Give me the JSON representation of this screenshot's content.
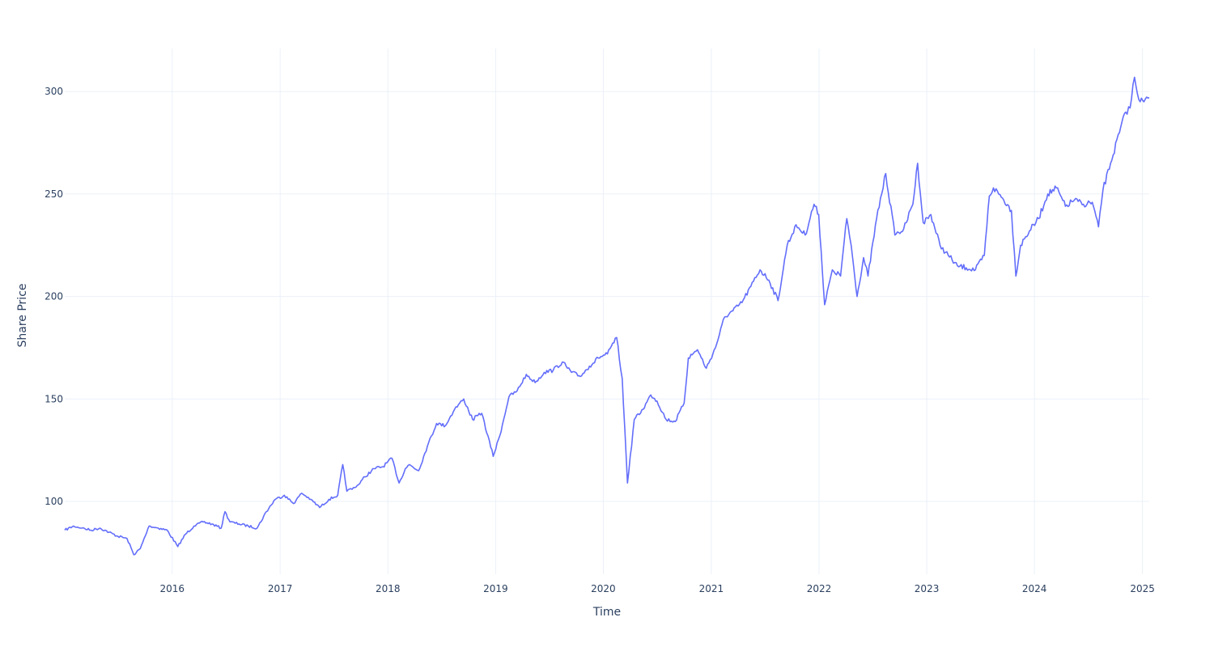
{
  "chart_data": {
    "type": "line",
    "title": "",
    "xlabel": "Time",
    "ylabel": "Share Price",
    "xlim": [
      "2015-01-02",
      "2025-01-24"
    ],
    "ylim": [
      64.5,
      321
    ],
    "x_ticks": [
      "2016",
      "2017",
      "2018",
      "2019",
      "2020",
      "2021",
      "2022",
      "2023",
      "2024",
      "2025"
    ],
    "y_ticks": [
      100,
      150,
      200,
      250,
      300
    ],
    "grid": true,
    "legend": "none",
    "colors": {
      "line": "#636efa",
      "grid": "#ebf0f8",
      "text": "#2a3f5f",
      "background": "#ffffff"
    },
    "series": [
      {
        "x": [
          "2015-01-02",
          "2015-02-01",
          "2015-03-01",
          "2015-04-01",
          "2015-05-01",
          "2015-06-01",
          "2015-07-01",
          "2015-08-01",
          "2015-08-24",
          "2015-09-15",
          "2015-10-15",
          "2015-11-15",
          "2015-12-15",
          "2016-01-20",
          "2016-02-15",
          "2016-03-15",
          "2016-04-15",
          "2016-05-15",
          "2016-06-15",
          "2016-06-28",
          "2016-07-15",
          "2016-08-15",
          "2016-09-15",
          "2016-10-15",
          "2016-11-15",
          "2016-12-15",
          "2017-01-15",
          "2017-02-15",
          "2017-03-15",
          "2017-04-15",
          "2017-05-15",
          "2017-06-15",
          "2017-07-15",
          "2017-08-01",
          "2017-08-15",
          "2017-09-15",
          "2017-10-15",
          "2017-11-15",
          "2017-12-15",
          "2018-01-15",
          "2018-02-08",
          "2018-03-01",
          "2018-03-15",
          "2018-04-15",
          "2018-05-15",
          "2018-06-15",
          "2018-07-15",
          "2018-08-15",
          "2018-09-15",
          "2018-10-15",
          "2018-11-15",
          "2018-12-24",
          "2019-01-15",
          "2019-02-15",
          "2019-03-15",
          "2019-04-15",
          "2019-05-15",
          "2019-06-15",
          "2019-07-15",
          "2019-08-15",
          "2019-09-15",
          "2019-10-15",
          "2019-11-15",
          "2019-12-15",
          "2020-01-15",
          "2020-02-15",
          "2020-03-05",
          "2020-03-23",
          "2020-04-15",
          "2020-05-15",
          "2020-06-10",
          "2020-07-01",
          "2020-08-01",
          "2020-09-01",
          "2020-10-01",
          "2020-10-15",
          "2020-11-15",
          "2020-12-15",
          "2021-01-15",
          "2021-02-15",
          "2021-03-15",
          "2021-04-15",
          "2021-05-15",
          "2021-06-15",
          "2021-07-15",
          "2021-08-15",
          "2021-09-15",
          "2021-10-15",
          "2021-11-15",
          "2021-12-15",
          "2021-12-31",
          "2022-01-20",
          "2022-02-15",
          "2022-03-15",
          "2022-04-05",
          "2022-04-20",
          "2022-05-10",
          "2022-06-01",
          "2022-06-16",
          "2022-07-15",
          "2022-08-15",
          "2022-09-15",
          "2022-10-15",
          "2022-11-15",
          "2022-12-01",
          "2022-12-20",
          "2023-01-15",
          "2023-02-15",
          "2023-03-15",
          "2023-04-15",
          "2023-05-15",
          "2023-06-15",
          "2023-07-15",
          "2023-08-01",
          "2023-08-15",
          "2023-09-15",
          "2023-10-15",
          "2023-10-30",
          "2023-11-15",
          "2023-12-15",
          "2024-01-15",
          "2024-02-15",
          "2024-03-15",
          "2024-04-15",
          "2024-05-15",
          "2024-06-15",
          "2024-07-15",
          "2024-08-05",
          "2024-08-20",
          "2024-09-15",
          "2024-10-15",
          "2024-11-05",
          "2024-11-20",
          "2024-12-05",
          "2024-12-20",
          "2025-01-06",
          "2025-01-24"
        ],
        "y": [
          86,
          88,
          87,
          86,
          87,
          85,
          83,
          82,
          74,
          77,
          88,
          87,
          86,
          78,
          84,
          88,
          90,
          89,
          87,
          95,
          90,
          89,
          88,
          87,
          95,
          101,
          103,
          99,
          104,
          101,
          97,
          101,
          103,
          118,
          105,
          107,
          112,
          116,
          117,
          121,
          109,
          116,
          118,
          115,
          127,
          138,
          137,
          145,
          150,
          140,
          143,
          122,
          132,
          151,
          154,
          162,
          158,
          163,
          164,
          168,
          163,
          161,
          166,
          170,
          172,
          180,
          160,
          109,
          140,
          145,
          152,
          149,
          140,
          139,
          148,
          170,
          174,
          165,
          175,
          190,
          193,
          197,
          205,
          213,
          208,
          198,
          225,
          235,
          230,
          245,
          240,
          196,
          213,
          210,
          238,
          225,
          200,
          219,
          210,
          238,
          260,
          230,
          233,
          245,
          265,
          236,
          240,
          225,
          220,
          215,
          214,
          213,
          220,
          249,
          253,
          248,
          242,
          210,
          225,
          232,
          238,
          250,
          253,
          244,
          247,
          245,
          246,
          234,
          252,
          265,
          280,
          290,
          292,
          307,
          296,
          295,
          297
        ]
      }
    ]
  }
}
